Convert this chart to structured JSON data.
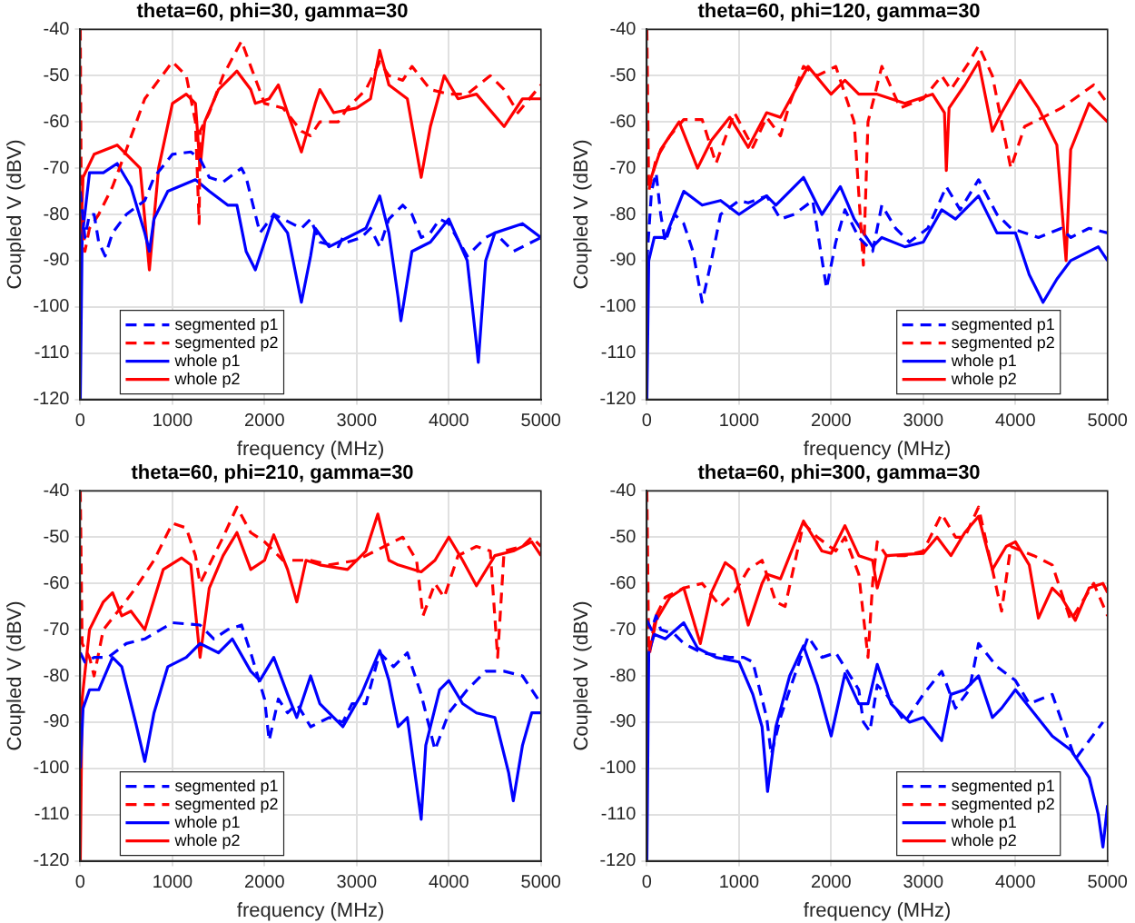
{
  "chart_data": [
    {
      "type": "line",
      "title": "theta=60, phi=30, gamma=30",
      "xlabel": "frequency (MHz)",
      "ylabel": "Coupled V (dBV)",
      "xlim": [
        0,
        5000
      ],
      "xticks": [
        0,
        1000,
        2000,
        3000,
        4000,
        5000
      ],
      "ylim": [
        -120,
        -40
      ],
      "yticks": [
        -120,
        -110,
        -100,
        -90,
        -80,
        -70,
        -60,
        -50,
        -40
      ],
      "grid": true,
      "legend": "bottom left",
      "series": [
        {
          "name": "segmented p1",
          "color": "#0000ff",
          "line_style": "dashed",
          "x": [
            0,
            50,
            100,
            150,
            200,
            270,
            350,
            500,
            700,
            800,
            1000,
            1200,
            1300,
            1400,
            1550,
            1750,
            1800,
            1950,
            2100,
            2200,
            2400,
            2500,
            2600,
            2800,
            2850,
            2900,
            3050,
            3150,
            3250,
            3350,
            3500,
            3600,
            3700,
            3800,
            3900,
            4000,
            4200,
            4400,
            4500,
            4700,
            5000
          ],
          "values": [
            -75,
            -85,
            -80,
            -80,
            -86,
            -89,
            -84,
            -80,
            -77,
            -72,
            -67,
            -66.5,
            -68,
            -72,
            -73,
            -70,
            -72,
            -84,
            -80,
            -81,
            -83,
            -81,
            -86,
            -87,
            -85,
            -86,
            -85,
            -83,
            -87,
            -81,
            -78,
            -80,
            -85,
            -84,
            -81,
            -82,
            -89,
            -85,
            -84,
            -88,
            -85
          ]
        },
        {
          "name": "segmented p2",
          "color": "#ff0000",
          "line_style": "dashed",
          "x": [
            0,
            10,
            50,
            100,
            200,
            350,
            500,
            700,
            1000,
            1150,
            1250,
            1290,
            1300,
            1400,
            1550,
            1750,
            1850,
            2000,
            2200,
            2400,
            2500,
            2600,
            2800,
            2900,
            3100,
            3250,
            3350,
            3500,
            3600,
            3800,
            4000,
            4200,
            4450,
            4600,
            4750,
            5000
          ],
          "values": [
            -40,
            -75,
            -88,
            -83,
            -80,
            -74,
            -66,
            -55,
            -47,
            -50,
            -60,
            -82,
            -62,
            -58,
            -50,
            -42.5,
            -48,
            -56,
            -57,
            -62,
            -63,
            -60,
            -60,
            -57,
            -53,
            -47,
            -50,
            -51,
            -48,
            -53,
            -54,
            -54,
            -50,
            -53,
            -58,
            -52
          ]
        },
        {
          "name": "whole p1",
          "color": "#0000ff",
          "line_style": "solid",
          "x": [
            0,
            20,
            100,
            250,
            400,
            550,
            700,
            750,
            800,
            950,
            1250,
            1400,
            1600,
            1700,
            1800,
            1900,
            2100,
            2250,
            2350,
            2400,
            2500,
            2550,
            2700,
            2900,
            3100,
            3250,
            3350,
            3450,
            3480,
            3600,
            3800,
            4000,
            4200,
            4300,
            4320,
            4400,
            4500,
            4800,
            5000
          ],
          "values": [
            -120,
            -85,
            -71,
            -71,
            -69,
            -74,
            -84,
            -88,
            -81,
            -75,
            -72.5,
            -75,
            -78,
            -78,
            -88,
            -92,
            -80,
            -84,
            -94,
            -99,
            -89,
            -83,
            -87,
            -85,
            -83,
            -76,
            -84,
            -98,
            -103,
            -88,
            -86,
            -81,
            -90,
            -108,
            -112,
            -90,
            -84,
            -82,
            -85
          ]
        },
        {
          "name": "whole p2",
          "color": "#ff0000",
          "line_style": "solid",
          "x": [
            0,
            30,
            150,
            400,
            500,
            650,
            750,
            850,
            1000,
            1150,
            1250,
            1300,
            1350,
            1500,
            1700,
            1850,
            1900,
            2050,
            2150,
            2250,
            2400,
            2550,
            2600,
            2750,
            3000,
            3150,
            3250,
            3350,
            3550,
            3700,
            3800,
            3950,
            4100,
            4300,
            4600,
            4800,
            5000
          ],
          "values": [
            -88,
            -72,
            -67,
            -65,
            -67,
            -70,
            -92,
            -70,
            -56,
            -54,
            -56,
            -70,
            -60,
            -53,
            -49,
            -53,
            -56,
            -55,
            -52,
            -58,
            -66.5,
            -56,
            -53,
            -58,
            -57,
            -55,
            -44.5,
            -52,
            -55,
            -72,
            -61,
            -50,
            -55,
            -54,
            -61,
            -55,
            -55
          ]
        }
      ]
    },
    {
      "type": "line",
      "title": "theta=60, phi=120, gamma=30",
      "xlabel": "frequency (MHz)",
      "ylabel": "Coupled V (dBV)",
      "xlim": [
        0,
        5000
      ],
      "xticks": [
        0,
        1000,
        2000,
        3000,
        4000,
        5000
      ],
      "ylim": [
        -120,
        -40
      ],
      "yticks": [
        -120,
        -110,
        -100,
        -90,
        -80,
        -70,
        -60,
        -50,
        -40
      ],
      "grid": true,
      "legend": "bottom right",
      "series": [
        {
          "name": "segmented p1",
          "color": "#0000ff",
          "line_style": "dashed",
          "x": [
            0,
            50,
            100,
            150,
            200,
            300,
            400,
            500,
            600,
            700,
            800,
            1000,
            1100,
            1300,
            1450,
            1600,
            1800,
            1950,
            2050,
            2150,
            2300,
            2450,
            2550,
            2700,
            2850,
            3050,
            3250,
            3400,
            3600,
            3800,
            3950,
            4250,
            4500,
            4600,
            4800,
            5000
          ],
          "values": [
            -90,
            -75,
            -71,
            -80,
            -86,
            -80,
            -82,
            -88,
            -99,
            -90,
            -80,
            -77,
            -77.5,
            -76,
            -81,
            -80,
            -77,
            -96,
            -86,
            -79,
            -85,
            -88,
            -78,
            -83,
            -86,
            -83,
            -74,
            -79,
            -72.5,
            -80,
            -83,
            -85,
            -83,
            -85,
            -83,
            -84
          ]
        },
        {
          "name": "segmented p2",
          "color": "#ff0000",
          "line_style": "dashed",
          "x": [
            0,
            20,
            100,
            250,
            400,
            600,
            750,
            950,
            1150,
            1300,
            1450,
            1550,
            1700,
            1850,
            2050,
            2250,
            2350,
            2400,
            2550,
            2750,
            3000,
            3200,
            3300,
            3500,
            3600,
            3750,
            3950,
            4100,
            4500,
            4850,
            5000
          ],
          "values": [
            -40,
            -75,
            -68,
            -63,
            -59.5,
            -59.5,
            -69,
            -58,
            -65.5,
            -59,
            -63,
            -56,
            -48,
            -50,
            -48,
            -60,
            -91,
            -60,
            -48,
            -57,
            -55,
            -50,
            -53,
            -47,
            -43.5,
            -50,
            -70,
            -61,
            -57,
            -52,
            -56
          ]
        },
        {
          "name": "whole p1",
          "color": "#0000ff",
          "line_style": "solid",
          "x": [
            0,
            20,
            80,
            200,
            400,
            600,
            800,
            1000,
            1300,
            1400,
            1700,
            1900,
            2100,
            2250,
            2450,
            2550,
            2800,
            3000,
            3200,
            3350,
            3600,
            3800,
            4000,
            4150,
            4300,
            4450,
            4600,
            4900,
            5000
          ],
          "values": [
            -120,
            -90,
            -85,
            -85,
            -75,
            -78,
            -77,
            -80,
            -76,
            -78,
            -72,
            -80,
            -74,
            -81,
            -87,
            -85,
            -87,
            -86,
            -79,
            -81,
            -76,
            -84,
            -84,
            -93,
            -99,
            -94,
            -90,
            -87,
            -90
          ]
        },
        {
          "name": "whole p2",
          "color": "#ff0000",
          "line_style": "solid",
          "x": [
            30,
            150,
            350,
            550,
            700,
            900,
            1100,
            1300,
            1450,
            1750,
            2000,
            2150,
            2300,
            2500,
            2800,
            3100,
            3230,
            3250,
            3280,
            3450,
            3600,
            3750,
            3850,
            4050,
            4250,
            4450,
            4550,
            4600,
            4800,
            5000
          ],
          "values": [
            -73,
            -66,
            -60,
            -70,
            -64,
            -59,
            -65.5,
            -58,
            -59,
            -48,
            -54,
            -51,
            -54,
            -54,
            -56,
            -54,
            -58,
            -70.5,
            -57,
            -52,
            -47,
            -62,
            -58,
            -51,
            -57,
            -65,
            -90,
            -66,
            -56,
            -60
          ]
        }
      ]
    },
    {
      "type": "line",
      "title": "theta=60, phi=210, gamma=30",
      "xlabel": "frequency (MHz)",
      "ylabel": "Coupled V (dBV)",
      "xlim": [
        0,
        5000
      ],
      "xticks": [
        0,
        1000,
        2000,
        3000,
        4000,
        5000
      ],
      "ylim": [
        -120,
        -40
      ],
      "yticks": [
        -120,
        -110,
        -100,
        -90,
        -80,
        -70,
        -60,
        -50,
        -40
      ],
      "grid": true,
      "legend": "bottom left",
      "series": [
        {
          "name": "segmented p1",
          "color": "#0000ff",
          "line_style": "dashed",
          "x": [
            0,
            50,
            150,
            300,
            500,
            700,
            1000,
            1300,
            1450,
            1600,
            1750,
            1850,
            2000,
            2050,
            2150,
            2250,
            2350,
            2500,
            2700,
            2850,
            2950,
            3100,
            3250,
            3400,
            3550,
            3700,
            3850,
            4000,
            4200,
            4400,
            4600,
            4800,
            5000
          ],
          "values": [
            -75,
            -77,
            -76,
            -76,
            -73,
            -72,
            -68.5,
            -69,
            -72,
            -70,
            -69,
            -75,
            -85,
            -94,
            -85,
            -88,
            -86,
            -91,
            -89,
            -90,
            -86,
            -86,
            -75,
            -78,
            -75,
            -84,
            -96,
            -88,
            -83,
            -79,
            -79,
            -80,
            -86
          ]
        },
        {
          "name": "segmented p2",
          "color": "#ff0000",
          "line_style": "dashed",
          "x": [
            0,
            20,
            100,
            150,
            250,
            450,
            600,
            800,
            1000,
            1150,
            1250,
            1300,
            1400,
            1550,
            1700,
            1850,
            2000,
            2200,
            2500,
            2700,
            3000,
            3300,
            3500,
            3650,
            3720,
            3850,
            3950,
            4100,
            4300,
            4450,
            4530,
            4600,
            4800,
            4900,
            5000
          ],
          "values": [
            -40,
            -73,
            -76,
            -80,
            -70,
            -65,
            -61,
            -55,
            -47,
            -48,
            -54,
            -60,
            -56,
            -50,
            -43.5,
            -49,
            -51,
            -55,
            -55,
            -56,
            -55,
            -52,
            -50,
            -55,
            -67,
            -60,
            -63,
            -54,
            -52,
            -53,
            -76,
            -53,
            -52,
            -50,
            -52
          ]
        },
        {
          "name": "whole p1",
          "color": "#0000ff",
          "line_style": "solid",
          "x": [
            0,
            30,
            100,
            200,
            350,
            450,
            600,
            700,
            800,
            950,
            1150,
            1300,
            1500,
            1650,
            1850,
            1950,
            2100,
            2250,
            2350,
            2500,
            2600,
            2850,
            3050,
            3250,
            3350,
            3450,
            3550,
            3700,
            3750,
            3900,
            4000,
            4150,
            4300,
            4500,
            4650,
            4700,
            4800,
            4900,
            5000
          ],
          "values": [
            -100,
            -87,
            -83,
            -83,
            -76,
            -78,
            -90,
            -98.5,
            -88,
            -78,
            -76,
            -73,
            -75,
            -72,
            -79,
            -81,
            -76,
            -84,
            -89,
            -80,
            -86,
            -91,
            -84,
            -74.5,
            -81,
            -91,
            -89,
            -111,
            -95,
            -83,
            -81,
            -86,
            -88,
            -89,
            -101,
            -107,
            -95,
            -88,
            -88
          ]
        },
        {
          "name": "whole p2",
          "color": "#ff0000",
          "line_style": "solid",
          "x": [
            0,
            20,
            100,
            250,
            350,
            450,
            550,
            700,
            900,
            1100,
            1200,
            1300,
            1400,
            1550,
            1700,
            1850,
            2000,
            2100,
            2250,
            2350,
            2450,
            2600,
            2900,
            3100,
            3230,
            3350,
            3450,
            3700,
            3850,
            4000,
            4150,
            4300,
            4500,
            4700,
            4900,
            5000
          ],
          "values": [
            -120,
            -85,
            -70,
            -64,
            -62,
            -67,
            -66,
            -70,
            -57,
            -54.5,
            -56,
            -76,
            -61,
            -54,
            -49,
            -57,
            -55,
            -49.5,
            -57,
            -64,
            -55,
            -56,
            -57,
            -53,
            -45,
            -55,
            -56,
            -57.5,
            -55,
            -50,
            -55,
            -60.5,
            -54,
            -53,
            -51,
            -54
          ]
        }
      ]
    },
    {
      "type": "line",
      "title": "theta=60, phi=300, gamma=30",
      "xlabel": "frequency (MHz)",
      "ylabel": "Coupled V (dBV)",
      "xlim": [
        0,
        5000
      ],
      "xticks": [
        0,
        1000,
        2000,
        3000,
        4000,
        5000
      ],
      "ylim": [
        -120,
        -40
      ],
      "yticks": [
        -120,
        -110,
        -100,
        -90,
        -80,
        -70,
        -60,
        -50,
        -40
      ],
      "grid": true,
      "legend": "bottom right",
      "series": [
        {
          "name": "segmented p1",
          "color": "#0000ff",
          "line_style": "dashed",
          "x": [
            0,
            50,
            100,
            150,
            300,
            400,
            600,
            900,
            1050,
            1150,
            1300,
            1350,
            1450,
            1550,
            1750,
            1900,
            2050,
            2300,
            2350,
            2420,
            2500,
            2600,
            2800,
            3000,
            3200,
            3350,
            3500,
            3600,
            3800,
            4000,
            4150,
            4400,
            4650,
            4800,
            4950
          ],
          "values": [
            -68,
            -70,
            -67,
            -70,
            -71,
            -73,
            -75,
            -76,
            -76,
            -77,
            -89,
            -97,
            -89,
            -83,
            -71.5,
            -76,
            -75,
            -83,
            -90,
            -92,
            -82,
            -84,
            -90,
            -84,
            -79,
            -87,
            -83,
            -73,
            -78,
            -81,
            -86,
            -84,
            -98,
            -94,
            -90
          ]
        },
        {
          "name": "segmented p2",
          "color": "#ff0000",
          "line_style": "dashed",
          "x": [
            0,
            20,
            100,
            200,
            400,
            600,
            800,
            950,
            1100,
            1250,
            1400,
            1500,
            1700,
            1850,
            2050,
            2150,
            2300,
            2400,
            2450,
            2500,
            2600,
            2800,
            3000,
            3200,
            3350,
            3450,
            3600,
            3750,
            3850,
            3950,
            4200,
            4400,
            4600,
            4850,
            5000
          ],
          "values": [
            -40,
            -75,
            -67,
            -63,
            -61,
            -60,
            -65,
            -62,
            -57,
            -55,
            -64,
            -65,
            -47,
            -50,
            -53,
            -50,
            -58,
            -76,
            -60,
            -51,
            -54,
            -54,
            -53,
            -45,
            -50,
            -50,
            -43.5,
            -57,
            -66,
            -52,
            -54,
            -56,
            -68,
            -60,
            -67
          ]
        },
        {
          "name": "whole p1",
          "color": "#0000ff",
          "line_style": "solid",
          "x": [
            0,
            20,
            80,
            200,
            400,
            550,
            750,
            1000,
            1150,
            1250,
            1310,
            1400,
            1550,
            1700,
            1850,
            2000,
            2150,
            2300,
            2400,
            2500,
            2650,
            2850,
            3000,
            3200,
            3300,
            3450,
            3600,
            3750,
            3850,
            4000,
            4200,
            4400,
            4600,
            4800,
            4900,
            4950,
            5000
          ],
          "values": [
            -120,
            -75,
            -71,
            -72,
            -68.5,
            -74,
            -76,
            -77,
            -84,
            -91,
            -105,
            -91,
            -80,
            -73.5,
            -82,
            -93,
            -79.5,
            -86,
            -86,
            -77.5,
            -86,
            -90,
            -89,
            -94,
            -84,
            -83,
            -80,
            -89,
            -87,
            -83,
            -88,
            -93,
            -96,
            -102,
            -110,
            -117,
            -108
          ]
        },
        {
          "name": "whole p2",
          "color": "#ff0000",
          "line_style": "solid",
          "x": [
            30,
            100,
            250,
            400,
            580,
            700,
            850,
            950,
            1100,
            1250,
            1300,
            1450,
            1700,
            1900,
            2000,
            2150,
            2300,
            2450,
            2500,
            2600,
            3000,
            3150,
            3300,
            3450,
            3600,
            3750,
            3900,
            4000,
            4150,
            4250,
            4400,
            4500,
            4650,
            4800,
            4950,
            5000
          ],
          "values": [
            -75,
            -68,
            -63,
            -61,
            -73,
            -62,
            -55.5,
            -57,
            -69,
            -60,
            -58,
            -59,
            -46.5,
            -53,
            -53.5,
            -47.5,
            -54,
            -55,
            -61,
            -54,
            -53.5,
            -50,
            -54,
            -49,
            -45.5,
            -57,
            -52,
            -51,
            -56,
            -67.5,
            -61,
            -63,
            -68,
            -61,
            -60,
            -62
          ]
        }
      ]
    }
  ]
}
